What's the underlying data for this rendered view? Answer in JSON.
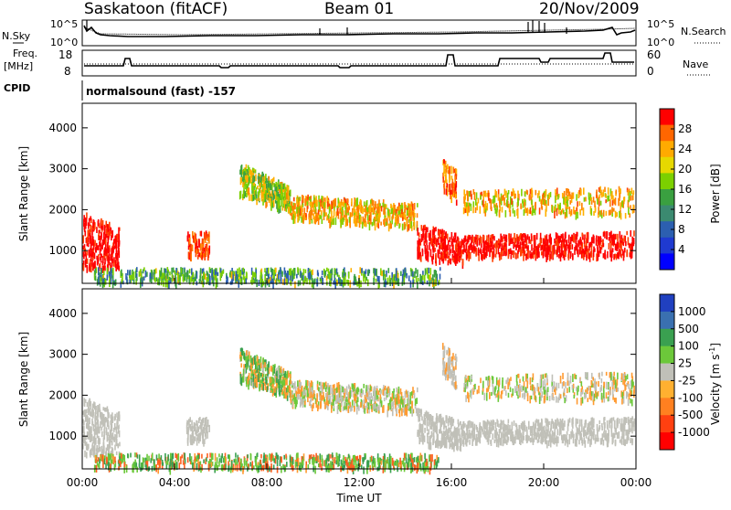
{
  "header": {
    "station": "Saskatoon (fitACF)",
    "beam": "Beam 01",
    "date": "20/Nov/2009"
  },
  "top_panel": {
    "left_label": "N.Sky",
    "right_label": "N.Search",
    "left_ticks": [
      "10^5",
      "10^0"
    ],
    "right_ticks": [
      "10^5",
      "10^0"
    ]
  },
  "freq_panel": {
    "left_label_1": "Freq.",
    "left_label_2": "[MHz]",
    "right_label": "Nave",
    "left_ticks": [
      "18",
      "8"
    ],
    "right_ticks": [
      "60",
      "0"
    ]
  },
  "cpid": {
    "label": "CPID",
    "text": "normalsound (fast) -157"
  },
  "chart_data": [
    {
      "type": "heatmap",
      "ylabel": "Slant Range [km]",
      "y_ticks": [
        "4000",
        "3000",
        "2000",
        "1000"
      ],
      "ylim": [
        200,
        4600
      ],
      "colorbar_label": "Power [dB]",
      "colorbar_ticks": [
        "28",
        "24",
        "20",
        "16",
        "12",
        "8",
        "4"
      ],
      "colorbar_colors": [
        "#ff0000",
        "#ff6600",
        "#ffaa00",
        "#e6d800",
        "#7cd000",
        "#3aa040",
        "#3b8a70",
        "#2c5fb0",
        "#1f3ad0",
        "#0000ff"
      ]
    },
    {
      "type": "heatmap",
      "ylabel": "Slant Range [km]",
      "y_ticks": [
        "4000",
        "3000",
        "2000",
        "1000"
      ],
      "ylim": [
        200,
        4600
      ],
      "colorbar_label": "Velocity [m s",
      "colorbar_label_sup": "-1",
      "colorbar_label_end": "]",
      "colorbar_ticks": [
        "1000",
        "500",
        "100",
        "25",
        "-25",
        "-100",
        "-500",
        "-1000"
      ],
      "colorbar_colors": [
        "#2040c0",
        "#3a70b0",
        "#3aa050",
        "#6cc83a",
        "#c0c0b8",
        "#ffb030",
        "#ff8020",
        "#ff4010",
        "#ff0000"
      ]
    }
  ],
  "x_axis": {
    "ticks": [
      "00:00",
      "04:00",
      "08:00",
      "12:00",
      "16:00",
      "20:00",
      "00:00"
    ],
    "label": "Time UT"
  }
}
